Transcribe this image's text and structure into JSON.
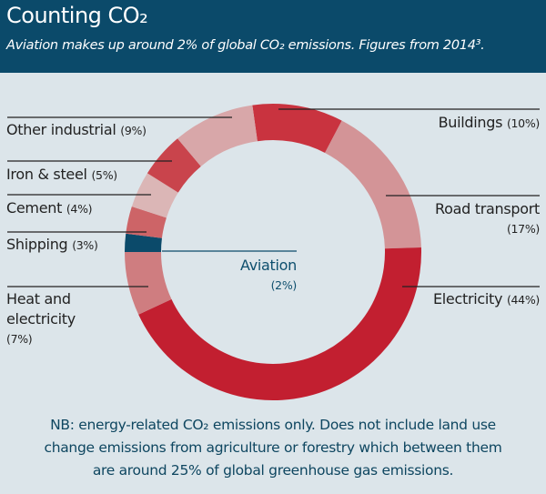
{
  "header": {
    "title": "Counting CO₂",
    "subtitle": "Aviation makes up around 2% of global CO₂ emissions. Figures from 2014³."
  },
  "colors": {
    "header_bg": "#0b4a6a",
    "background": "#dce5ea",
    "aviation": "#0b4a6a"
  },
  "chart_data": {
    "type": "pie",
    "variant": "donut",
    "title": "Counting CO₂",
    "unit": "% of global CO₂ emissions",
    "start": "top, clockwise",
    "slices": [
      {
        "label": "Buildings",
        "value": 10,
        "pct_text": "(10%)",
        "color": "#c9333f"
      },
      {
        "label": "Road transport",
        "value": 17,
        "pct_text": "(17%)",
        "color": "#d39497"
      },
      {
        "label": "Electricity",
        "value": 44,
        "pct_text": "(44%)",
        "color": "#c21f30"
      },
      {
        "label": "Heat and electricity",
        "value": 7,
        "pct_text": "(7%)",
        "color": "#cf7d80"
      },
      {
        "label": "Aviation",
        "value": 2,
        "pct_text": "(2%)",
        "color": "#0b4a6a"
      },
      {
        "label": "Shipping",
        "value": 3,
        "pct_text": "(3%)",
        "color": "#cd6467"
      },
      {
        "label": "Cement",
        "value": 4,
        "pct_text": "(4%)",
        "color": "#dbb6b6"
      },
      {
        "label": "Iron & steel",
        "value": 5,
        "pct_text": "(5%)",
        "color": "#c9444c"
      },
      {
        "label": "Other industrial",
        "value": 9,
        "pct_text": "(9%)",
        "color": "#d8a7a9"
      }
    ]
  },
  "labels": {
    "other_industrial": {
      "name": "Other industrial",
      "pct": "(9%)"
    },
    "iron_steel": {
      "name": "Iron & steel",
      "pct": "(5%)"
    },
    "cement": {
      "name": "Cement",
      "pct": "(4%)"
    },
    "shipping": {
      "name": "Shipping",
      "pct": "(3%)"
    },
    "heat_line1": "Heat and",
    "heat_line2": "electricity",
    "heat_pct": "(7%)",
    "aviation": {
      "name": "Aviation",
      "pct": "(2%)"
    },
    "buildings": {
      "name": "Buildings",
      "pct": "(10%)"
    },
    "road_transport": {
      "name": "Road transport",
      "pct": "(17%)"
    },
    "electricity": {
      "name": "Electricity",
      "pct": "(44%)"
    }
  },
  "note": {
    "line1": "NB: energy-related CO₂ emissions only. Does not include land use",
    "line2": "change emissions from agriculture or forestry which between them",
    "line3": "are around 25% of global greenhouse gas emissions."
  }
}
